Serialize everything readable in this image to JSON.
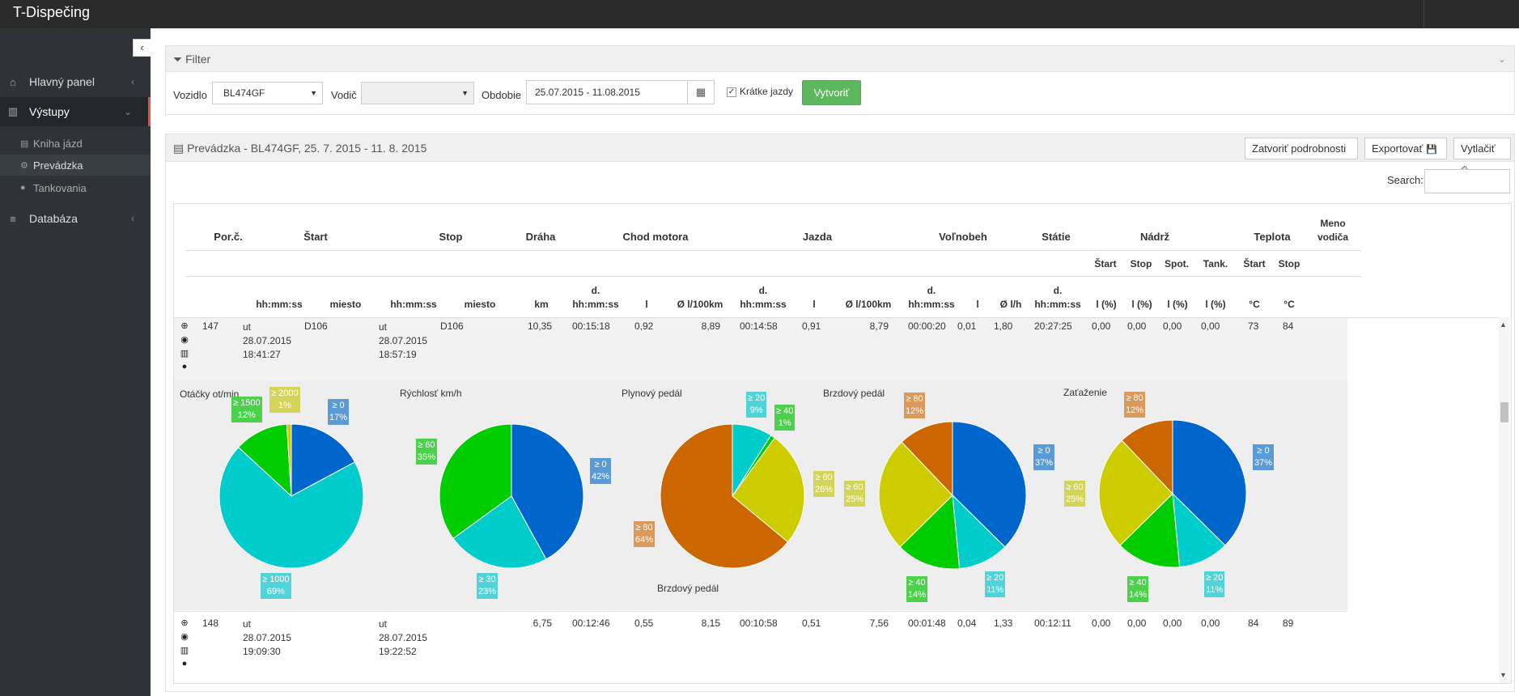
{
  "app": {
    "title": "T-Dispečing"
  },
  "sidebar": {
    "items": [
      {
        "label": "Hlavný panel",
        "icon": "home-icon"
      },
      {
        "label": "Výstupy",
        "icon": "bar-chart-icon"
      },
      {
        "label": "Databáza",
        "icon": "database-icon"
      }
    ],
    "subitems": [
      {
        "label": "Kniha jázd",
        "icon": "book-icon"
      },
      {
        "label": "Prevádzka",
        "icon": "cogs-icon"
      },
      {
        "label": "Tankovania",
        "icon": "circle-icon"
      }
    ]
  },
  "filter": {
    "title": "Filter",
    "vozidlo_label": "Vozidlo",
    "vozidlo_value": "BL474GF",
    "vodic_label": "Vodič",
    "vodic_value": "",
    "obdobie_label": "Obdobie",
    "obdobie_value": "25.07.2015 - 11.08.2015",
    "kratke_label": "Krátke jazdy",
    "kratke_checked": true,
    "vytvorit_label": "Vytvoriť"
  },
  "report": {
    "title": "Prevádzka - BL474GF, 25. 7. 2015 - 11. 8. 2015",
    "close_label": "Zatvoriť podrobnosti",
    "export_label": "Exportovať",
    "print_label": "Vytlačiť",
    "search_label": "Search:"
  },
  "table": {
    "header1": [
      "Por.č.",
      "Štart",
      "Stop",
      "Dráha",
      "Chod motora",
      "Jazda",
      "Voľnobeh",
      "Státie",
      "Nádrž",
      "Teplota",
      "Meno",
      "vodiča"
    ],
    "header2": [
      "Štart",
      "Stop",
      "Spot.",
      "Tank.",
      "Štart",
      "Stop"
    ],
    "header3": [
      {
        "t": "hh:mm:ss"
      },
      {
        "t": "miesto"
      },
      {
        "t": "hh:mm:ss"
      },
      {
        "t": "miesto"
      },
      {
        "t": "km"
      },
      {
        "t1": "d.",
        "t": "hh:mm:ss"
      },
      {
        "t": "l"
      },
      {
        "t": "Ø l/100km"
      },
      {
        "t1": "d.",
        "t": "hh:mm:ss"
      },
      {
        "t": "l"
      },
      {
        "t": "Ø l/100km"
      },
      {
        "t1": "d.",
        "t": "hh:mm:ss"
      },
      {
        "t": "l"
      },
      {
        "t": "Ø l/h"
      },
      {
        "t1": "d.",
        "t": "hh:mm:ss"
      },
      {
        "t": "l (%)"
      },
      {
        "t": "l (%)"
      },
      {
        "t": "l (%)"
      },
      {
        "t": "l (%)"
      },
      {
        "t": "°C"
      },
      {
        "t": "°C"
      }
    ],
    "rows": [
      {
        "num": "147",
        "start_day": "ut",
        "start_date": "28.07.2015",
        "start_time": "18:41:27",
        "start_place": "D106",
        "stop_day": "ut",
        "stop_date": "28.07.2015",
        "stop_time": "18:57:19",
        "stop_place": "D106",
        "km": "10,35",
        "motor_time": "00:15:18",
        "motor_l": "0,92",
        "motor_avg": "8,89",
        "drive_time": "00:14:58",
        "drive_l": "0,91",
        "drive_avg": "8,79",
        "idle_time": "00:00:20",
        "idle_l": "0,01",
        "idle_avg": "1,80",
        "stand_time": "20:27:25",
        "tank_start": "0,00",
        "tank_stop": "0,00",
        "tank_spot": "0,00",
        "tank_tank": "0,00",
        "temp_start": "73",
        "temp_stop": "84"
      },
      {
        "num": "148",
        "start_day": "ut",
        "start_date": "28.07.2015",
        "start_time": "19:09:30",
        "start_place": "",
        "stop_day": "ut",
        "stop_date": "28.07.2015",
        "stop_time": "19:22:52",
        "stop_place": "",
        "km": "6,75",
        "motor_time": "00:12:46",
        "motor_l": "0,55",
        "motor_avg": "8,15",
        "drive_time": "00:10:58",
        "drive_l": "0,51",
        "drive_avg": "7,56",
        "idle_time": "00:01:48",
        "idle_l": "0,04",
        "idle_avg": "1,33",
        "stand_time": "00:12:11",
        "tank_start": "0,00",
        "tank_stop": "0,00",
        "tank_spot": "0,00",
        "tank_tank": "0,00",
        "temp_start": "84",
        "temp_stop": "89"
      }
    ]
  },
  "colors": {
    "blue": "#0066cc",
    "cyan": "#00cccc",
    "green": "#00cc00",
    "yellow": "#cccc00",
    "orange": "#cc6600",
    "label_blue": "#5b9bd5",
    "label_cyan": "#52d3d8",
    "label_green": "#4cd14c",
    "label_yellow": "#d4d45a",
    "label_orange": "#d99a5b",
    "accent": "#5cb85c",
    "sidebar_active": "#e74c3c"
  },
  "chart_data": [
    {
      "type": "pie",
      "title": "Otáčky ot/min",
      "slices": [
        {
          "label": "≥ 0",
          "pct": "17%",
          "value": 17,
          "color": "blue"
        },
        {
          "label": "≥ 1000",
          "pct": "69%",
          "value": 69,
          "color": "cyan"
        },
        {
          "label": "≥ 1500",
          "pct": "12%",
          "value": 12,
          "color": "green"
        },
        {
          "label": "≥ 2000",
          "pct": "1%",
          "value": 1,
          "color": "yellow"
        }
      ]
    },
    {
      "type": "pie",
      "title": "Rýchlosť km/h",
      "slices": [
        {
          "label": "≥ 0",
          "pct": "42%",
          "value": 42,
          "color": "blue"
        },
        {
          "label": "≥ 30",
          "pct": "23%",
          "value": 23,
          "color": "cyan"
        },
        {
          "label": "≥ 60",
          "pct": "35%",
          "value": 35,
          "color": "green"
        }
      ]
    },
    {
      "type": "pie",
      "title": "Plynový pedál",
      "subtitle": "Brzdový pedál",
      "slices": [
        {
          "label": "≥ 20",
          "pct": "9%",
          "value": 9,
          "color": "cyan"
        },
        {
          "label": "≥ 40",
          "pct": "1%",
          "value": 1,
          "color": "green"
        },
        {
          "label": "≥ 60",
          "pct": "26%",
          "value": 26,
          "color": "yellow"
        },
        {
          "label": "≥ 80",
          "pct": "64%",
          "value": 64,
          "color": "orange"
        }
      ]
    },
    {
      "type": "pie",
      "title": "Brzdový pedál",
      "slices": [
        {
          "label": "≥ 0",
          "pct": "37%",
          "value": 37,
          "color": "blue"
        },
        {
          "label": "≥ 20",
          "pct": "11%",
          "value": 11,
          "color": "cyan"
        },
        {
          "label": "≥ 40",
          "pct": "14%",
          "value": 14,
          "color": "green"
        },
        {
          "label": "≥ 60",
          "pct": "25%",
          "value": 25,
          "color": "yellow"
        },
        {
          "label": "≥ 80",
          "pct": "12%",
          "value": 12,
          "color": "orange"
        }
      ]
    },
    {
      "type": "pie",
      "title": "Zaťaženie",
      "slices": [
        {
          "label": "≥ 0",
          "pct": "37%",
          "value": 37,
          "color": "blue"
        },
        {
          "label": "≥ 20",
          "pct": "11%",
          "value": 11,
          "color": "cyan"
        },
        {
          "label": "≥ 40",
          "pct": "14%",
          "value": 14,
          "color": "green"
        },
        {
          "label": "≥ 60",
          "pct": "25%",
          "value": 25,
          "color": "yellow"
        },
        {
          "label": "≥ 80",
          "pct": "12%",
          "value": 12,
          "color": "orange"
        }
      ]
    }
  ]
}
